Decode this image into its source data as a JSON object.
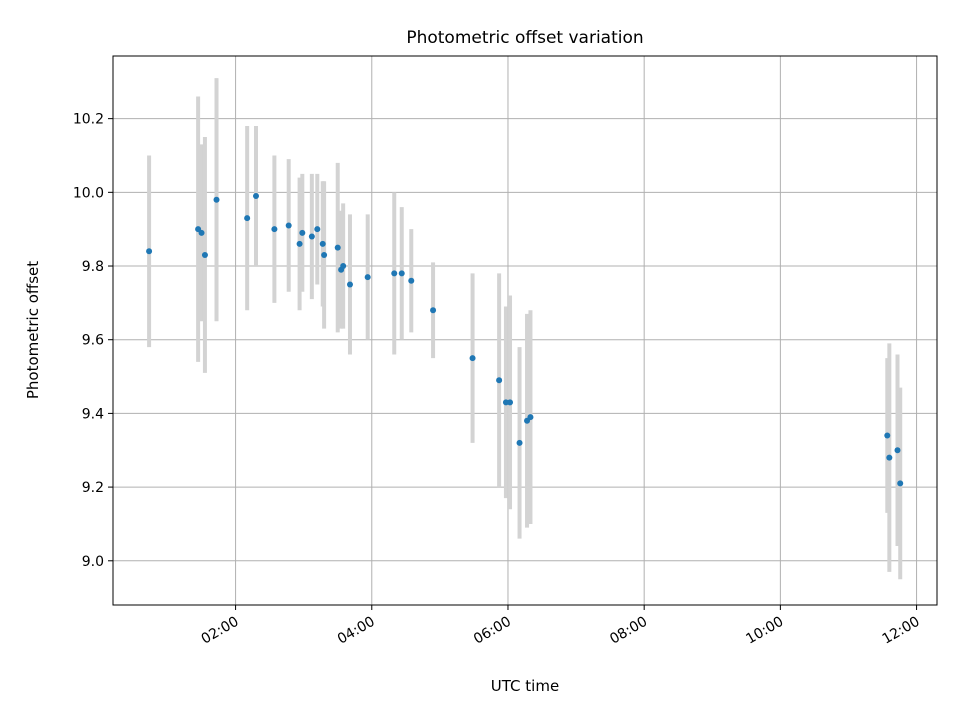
{
  "chart_data": {
    "type": "scatter",
    "title": "Photometric offset variation",
    "xlabel": "UTC time",
    "ylabel": "Photometric offset",
    "x_unit": "hours UTC",
    "xlim": [
      0.2,
      12.3
    ],
    "ylim": [
      8.88,
      10.37
    ],
    "grid": true,
    "x_ticks": [
      {
        "value": 2,
        "label": "02:00"
      },
      {
        "value": 4,
        "label": "04:00"
      },
      {
        "value": 6,
        "label": "06:00"
      },
      {
        "value": 8,
        "label": "08:00"
      },
      {
        "value": 10,
        "label": "10:00"
      },
      {
        "value": 12,
        "label": "12:00"
      }
    ],
    "y_ticks": [
      {
        "value": 9.0,
        "label": "9.0"
      },
      {
        "value": 9.2,
        "label": "9.2"
      },
      {
        "value": 9.4,
        "label": "9.4"
      },
      {
        "value": 9.6,
        "label": "9.6"
      },
      {
        "value": 9.8,
        "label": "9.8"
      },
      {
        "value": 10.0,
        "label": "10.0"
      },
      {
        "value": 10.2,
        "label": "10.2"
      }
    ],
    "colors": {
      "point": "#1f77b4",
      "errorbar": "#d3d3d3",
      "grid": "#b0b0b0"
    },
    "points": [
      {
        "x": 0.73,
        "y": 9.84,
        "err": 0.26
      },
      {
        "x": 1.45,
        "y": 9.9,
        "err": 0.36
      },
      {
        "x": 1.5,
        "y": 9.89,
        "err": 0.24
      },
      {
        "x": 1.55,
        "y": 9.83,
        "err": 0.32
      },
      {
        "x": 1.72,
        "y": 9.98,
        "err": 0.33
      },
      {
        "x": 2.17,
        "y": 9.93,
        "err": 0.25
      },
      {
        "x": 2.3,
        "y": 9.99,
        "err": 0.19
      },
      {
        "x": 2.57,
        "y": 9.9,
        "err": 0.2
      },
      {
        "x": 2.78,
        "y": 9.91,
        "err": 0.18
      },
      {
        "x": 2.94,
        "y": 9.86,
        "err": 0.18
      },
      {
        "x": 2.98,
        "y": 9.89,
        "err": 0.16
      },
      {
        "x": 3.12,
        "y": 9.88,
        "err": 0.17
      },
      {
        "x": 3.2,
        "y": 9.9,
        "err": 0.15
      },
      {
        "x": 3.28,
        "y": 9.86,
        "err": 0.17
      },
      {
        "x": 3.3,
        "y": 9.83,
        "err": 0.2
      },
      {
        "x": 3.5,
        "y": 9.85,
        "err": 0.23
      },
      {
        "x": 3.55,
        "y": 9.79,
        "err": 0.16
      },
      {
        "x": 3.58,
        "y": 9.8,
        "err": 0.17
      },
      {
        "x": 3.68,
        "y": 9.75,
        "err": 0.19
      },
      {
        "x": 3.94,
        "y": 9.77,
        "err": 0.17
      },
      {
        "x": 4.33,
        "y": 9.78,
        "err": 0.22
      },
      {
        "x": 4.44,
        "y": 9.78,
        "err": 0.18
      },
      {
        "x": 4.58,
        "y": 9.76,
        "err": 0.14
      },
      {
        "x": 4.9,
        "y": 9.68,
        "err": 0.13
      },
      {
        "x": 5.48,
        "y": 9.55,
        "err": 0.23
      },
      {
        "x": 5.87,
        "y": 9.49,
        "err": 0.29
      },
      {
        "x": 5.97,
        "y": 9.43,
        "err": 0.26
      },
      {
        "x": 6.03,
        "y": 9.43,
        "err": 0.29
      },
      {
        "x": 6.17,
        "y": 9.32,
        "err": 0.26
      },
      {
        "x": 6.28,
        "y": 9.38,
        "err": 0.29
      },
      {
        "x": 6.33,
        "y": 9.39,
        "err": 0.29
      },
      {
        "x": 11.57,
        "y": 9.34,
        "err": 0.21
      },
      {
        "x": 11.6,
        "y": 9.28,
        "err": 0.31
      },
      {
        "x": 11.72,
        "y": 9.3,
        "err": 0.26
      },
      {
        "x": 11.76,
        "y": 9.21,
        "err": 0.26
      }
    ]
  }
}
